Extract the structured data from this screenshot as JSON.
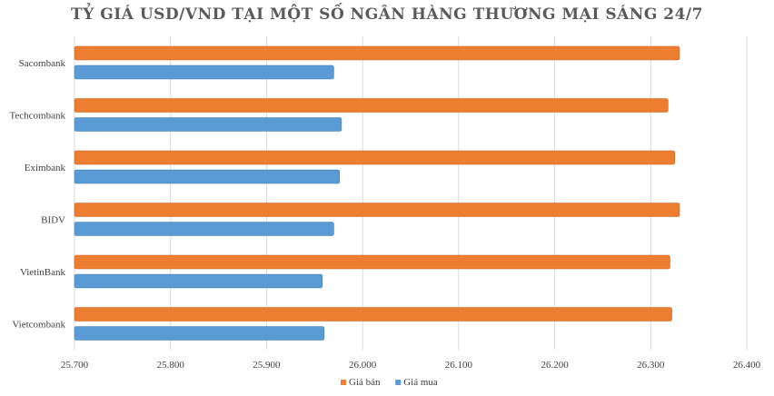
{
  "chart_data": {
    "type": "bar",
    "orientation": "horizontal",
    "title": "TỶ GIÁ USD/VND TẠI MỘT SỐ NGÂN HÀNG THƯƠNG MẠI SÁNG 24/7",
    "categories": [
      "Sacombank",
      "Techcombank",
      "Eximbank",
      "BIDV",
      "VietinBank",
      "Vietcombank"
    ],
    "series": [
      {
        "name": "Giá bán",
        "color": "#ED7D31",
        "values": [
          26330,
          26318,
          26325,
          26330,
          26320,
          26322
        ]
      },
      {
        "name": "Giá mua",
        "color": "#5B9BD5",
        "values": [
          25970,
          25978,
          25976,
          25970,
          25958,
          25960
        ]
      }
    ],
    "x_ticks": [
      "25.700",
      "25.800",
      "25.900",
      "26.000",
      "26.100",
      "26.200",
      "26.300",
      "26.400"
    ],
    "xlim": [
      25700,
      26400
    ],
    "xlabel": "",
    "ylabel": "",
    "grid": "vertical",
    "legend_position": "bottom"
  }
}
